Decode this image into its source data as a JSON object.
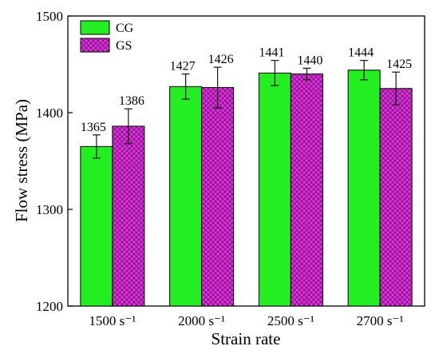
{
  "chart_data": {
    "type": "bar",
    "title": "",
    "xlabel": "Strain rate",
    "ylabel": "Flow stress (MPa)",
    "ylim": [
      1200,
      1500
    ],
    "yticks": [
      "1200",
      "1300",
      "1400",
      "1500"
    ],
    "categories": [
      "1500 s⁻¹",
      "2000 s⁻¹",
      "2500 s⁻¹",
      "2700 s⁻¹"
    ],
    "series": [
      {
        "name": "CG",
        "color": "#22ee22",
        "pattern": "solid",
        "values": [
          1365,
          1427,
          1441,
          1444
        ],
        "error": [
          12,
          13,
          13,
          10
        ],
        "labels": [
          "1365",
          "1427",
          "1441",
          "1444"
        ]
      },
      {
        "name": "GS",
        "color": "#cc22cc",
        "pattern": "crosshatch",
        "values": [
          1386,
          1426,
          1440,
          1425
        ],
        "error": [
          18,
          21,
          6,
          17
        ],
        "labels": [
          "1386",
          "1426",
          "1440",
          "1425"
        ]
      }
    ],
    "legend": "top-left",
    "grid": false
  }
}
